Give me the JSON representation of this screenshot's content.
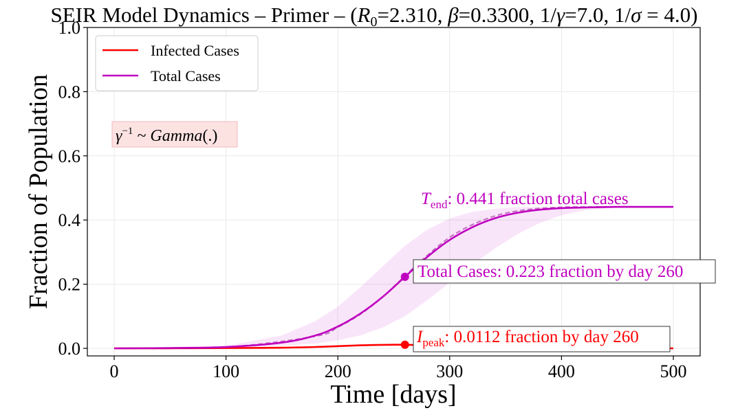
{
  "chart_data": {
    "type": "line",
    "title": "SEIR Model Dynamics – Primer – (R₀=2.310, β=0.3300, 1/γ=7.0, 1/σ = 4.0)",
    "title_parts": {
      "prefix": "SEIR Model Dynamics – Primer – (",
      "r_sym": "R",
      "r_sub": "0",
      "r_val": "=2.310, ",
      "beta_sym": "β",
      "beta_val": "=0.3300, 1/",
      "gamma_sym": "γ",
      "gamma_val": "=7.0, 1/",
      "sigma_sym": "σ",
      "sigma_val": " = 4.0)"
    },
    "xlabel": "Time [days]",
    "ylabel": "Fraction of Population",
    "xlim": [
      0,
      500
    ],
    "ylim": [
      0,
      1.0
    ],
    "xticks": [
      0,
      100,
      200,
      300,
      400,
      500
    ],
    "xtick_labels": [
      "0",
      "100",
      "200",
      "300",
      "400",
      "500"
    ],
    "yticks": [
      0.0,
      0.2,
      0.4,
      0.6,
      0.8,
      1.0
    ],
    "ytick_labels": [
      "0.0",
      "0.2",
      "0.4",
      "0.6",
      "0.8",
      "1.0"
    ],
    "grid": true,
    "legend_position": "top-left",
    "series": [
      {
        "name": "Infected Cases",
        "color": "#ff0000",
        "x": [
          0,
          50,
          100,
          150,
          180,
          200,
          220,
          240,
          260,
          280,
          300,
          320,
          350,
          400,
          450,
          500
        ],
        "y": [
          0.0,
          0.0003,
          0.0008,
          0.002,
          0.0042,
          0.0068,
          0.0095,
          0.011,
          0.0112,
          0.0098,
          0.0075,
          0.0052,
          0.003,
          0.001,
          0.0004,
          0.0001
        ]
      },
      {
        "name": "Total Cases",
        "color": "#bf00bf",
        "x": [
          0,
          50,
          100,
          150,
          180,
          200,
          220,
          240,
          260,
          280,
          300,
          320,
          340,
          360,
          380,
          400,
          420,
          450,
          500
        ],
        "y": [
          0.0,
          0.001,
          0.004,
          0.018,
          0.04,
          0.068,
          0.108,
          0.16,
          0.223,
          0.285,
          0.338,
          0.377,
          0.405,
          0.422,
          0.432,
          0.437,
          0.439,
          0.441,
          0.441
        ]
      }
    ],
    "dashed_series": {
      "color": "#c070c0",
      "x": [
        0,
        100,
        180,
        200,
        220,
        240,
        260,
        280,
        300,
        320,
        340,
        360,
        380,
        400,
        420,
        450,
        500
      ],
      "y": [
        0.0,
        0.004,
        0.038,
        0.066,
        0.106,
        0.16,
        0.226,
        0.29,
        0.346,
        0.385,
        0.412,
        0.428,
        0.436,
        0.44,
        0.441,
        0.441,
        0.441
      ]
    },
    "band": {
      "color": "#e070e0",
      "x": [
        0,
        100,
        150,
        180,
        200,
        220,
        240,
        260,
        280,
        300,
        320,
        340,
        360,
        380,
        400,
        420,
        450,
        500
      ],
      "upper": [
        0.0,
        0.008,
        0.04,
        0.085,
        0.13,
        0.19,
        0.255,
        0.32,
        0.37,
        0.405,
        0.425,
        0.435,
        0.44,
        0.441,
        0.441,
        0.441,
        0.441,
        0.441
      ],
      "lower": [
        0.0,
        0.002,
        0.008,
        0.015,
        0.025,
        0.04,
        0.065,
        0.1,
        0.15,
        0.205,
        0.26,
        0.31,
        0.355,
        0.39,
        0.415,
        0.43,
        0.44,
        0.441
      ]
    },
    "markers": [
      {
        "series": "Infected Cases",
        "x": 260,
        "y": 0.0112,
        "color": "#ff0000"
      },
      {
        "series": "Total Cases",
        "x": 260,
        "y": 0.223,
        "color": "#bf00bf"
      }
    ],
    "annotations": {
      "gamma_box": {
        "sym": "γ",
        "sup": "−1",
        "rest": " ~ ",
        "italic": "Gamma",
        "tail": "(.)"
      },
      "tend": {
        "sym": "T",
        "sub": "end",
        "text": ": 0.441 fraction total cases",
        "color": "#bf00bf"
      },
      "total_cases": {
        "text": "Total Cases: 0.223 fraction by day 260",
        "color": "#bf00bf"
      },
      "ipeak": {
        "sym": "I",
        "sub": "peak",
        "text": ": 0.0112 fraction by day 260",
        "color": "#ff0000"
      }
    }
  }
}
